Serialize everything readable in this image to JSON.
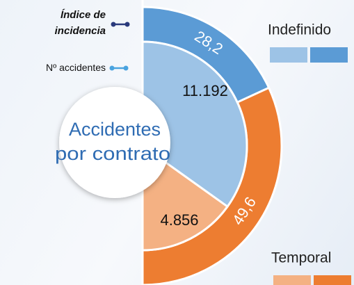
{
  "chart_data": {
    "type": "pie",
    "title": [
      "Accidentes",
      "por contrato"
    ],
    "categories": [
      "Indefinido",
      "Temporal"
    ],
    "series": [
      {
        "name": "Índice de incidencia",
        "color": "#2a3a7c",
        "colors": [
          "#5b9bd5",
          "#ed7d31"
        ],
        "values": [
          28.2,
          49.6
        ],
        "value_labels": [
          "28,2",
          "49,6"
        ]
      },
      {
        "name": "Nº accidentes",
        "color": "#4aa3df",
        "colors": [
          "#9dc3e6",
          "#f4b183"
        ],
        "values": [
          11192,
          4856
        ],
        "value_labels": [
          "11.192",
          "4.856"
        ]
      }
    ]
  }
}
